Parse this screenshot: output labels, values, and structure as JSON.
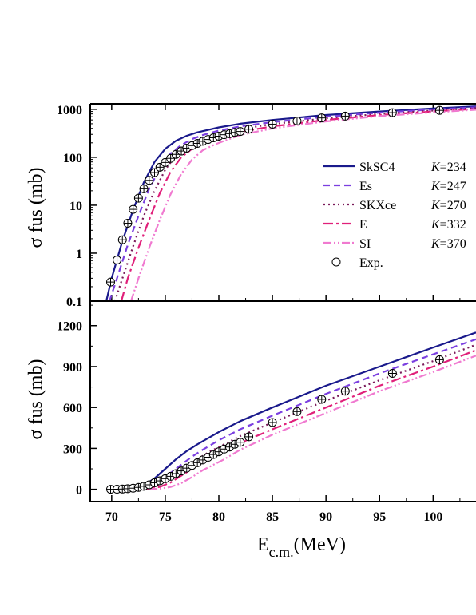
{
  "chart_data": [
    {
      "type": "line",
      "yscale": "log",
      "xlim": [
        68,
        104
      ],
      "ylim": [
        0.1,
        1300
      ],
      "ylabel": "σ fus (mb)",
      "yticks": [
        0.1,
        1,
        10,
        100,
        1000
      ],
      "ytick_labels": [
        "0.1",
        "1",
        "10",
        "100",
        "1000"
      ],
      "legend_position": "right",
      "series": [
        {
          "name": "SkSC4",
          "k_label": "K=234",
          "color": "#1a1a8c",
          "dash": "solid",
          "x": [
            69.5,
            70,
            71,
            72,
            73,
            74,
            75,
            76,
            77,
            78,
            80,
            82,
            85,
            90,
            95,
            100,
            104
          ],
          "y": [
            0.1,
            0.3,
            1.8,
            8,
            30,
            80,
            150,
            220,
            280,
            330,
            420,
            500,
            600,
            760,
            900,
            1040,
            1150
          ]
        },
        {
          "name": "Es",
          "k_label": "K=247",
          "color": "#7b3fe0",
          "dash": "8,5",
          "x": [
            69.8,
            70.5,
            71.5,
            72.5,
            73.5,
            74.5,
            75.5,
            76.5,
            77.5,
            78.5,
            80,
            82,
            85,
            90,
            95,
            100,
            104
          ],
          "y": [
            0.1,
            0.3,
            1.5,
            6,
            22,
            60,
            120,
            180,
            240,
            290,
            360,
            440,
            540,
            700,
            850,
            990,
            1100
          ]
        },
        {
          "name": "SKXce",
          "k_label": "K=270",
          "color": "#7a1a5a",
          "dash": "2,4",
          "x": [
            70.3,
            71,
            72,
            73,
            74,
            75,
            76,
            77,
            78,
            79,
            80,
            82,
            85,
            90,
            95,
            100,
            104
          ],
          "y": [
            0.1,
            0.3,
            1.4,
            6,
            20,
            55,
            110,
            170,
            220,
            270,
            310,
            390,
            490,
            650,
            800,
            940,
            1060
          ]
        },
        {
          "name": "E",
          "k_label": "K=332",
          "color": "#e0207a",
          "dash": "12,4,3,4",
          "x": [
            70.9,
            71.5,
            72.5,
            73.5,
            74.5,
            75.5,
            76.5,
            77.5,
            78.5,
            79.5,
            80.5,
            82,
            85,
            90,
            95,
            100,
            104
          ],
          "y": [
            0.1,
            0.3,
            1.3,
            5,
            18,
            50,
            100,
            150,
            200,
            240,
            280,
            340,
            440,
            600,
            760,
            900,
            1020
          ]
        },
        {
          "name": "SI",
          "k_label": "K=370",
          "color": "#f07ad0",
          "dash": "10,3,2,3,2,3",
          "x": [
            71.8,
            72.5,
            73.5,
            74.5,
            75.5,
            76.5,
            77.5,
            78.5,
            79.5,
            80.5,
            82,
            85,
            90,
            95,
            100,
            104
          ],
          "y": [
            0.1,
            0.3,
            1.3,
            5,
            17,
            45,
            90,
            140,
            180,
            220,
            290,
            400,
            560,
            720,
            860,
            980
          ]
        },
        {
          "name": "Exp.",
          "color": "#000000",
          "marker": "circle-cross",
          "x": [
            69.9,
            70.5,
            71.0,
            71.5,
            72.0,
            72.5,
            73.0,
            73.5,
            74.0,
            74.5,
            75.0,
            75.5,
            76.0,
            76.5,
            77.0,
            77.5,
            78.0,
            78.5,
            79.0,
            79.5,
            80.0,
            80.5,
            81.0,
            81.5,
            82.0,
            82.8,
            85.0,
            87.3,
            89.6,
            91.8,
            96.2,
            100.6
          ],
          "y": [
            0.25,
            0.72,
            1.9,
            4.2,
            8.2,
            14,
            22,
            33,
            48,
            62,
            78,
            95,
            115,
            135,
            155,
            175,
            195,
            215,
            235,
            255,
            275,
            295,
            310,
            330,
            345,
            385,
            490,
            570,
            660,
            720,
            850,
            950
          ]
        }
      ]
    },
    {
      "type": "line",
      "xlabel": "E",
      "xlabel_sub": "c.m.",
      "xlabel_unit": "(MeV)",
      "xlim": [
        68,
        104
      ],
      "ylim": [
        -90,
        1380
      ],
      "xticks": [
        70,
        75,
        80,
        85,
        90,
        95,
        100
      ],
      "yticks": [
        0,
        300,
        600,
        900,
        1200
      ],
      "ylabel": "σ fus (mb)",
      "series_ref": "same-as-top-panel"
    }
  ],
  "labels": {
    "top_ytick_labels": [
      "0.1",
      "1",
      "10",
      "100",
      "1000"
    ],
    "bottom_ytick_labels": [
      "0",
      "300",
      "600",
      "900",
      "1200"
    ],
    "xtick_labels": [
      "70",
      "75",
      "80",
      "85",
      "90",
      "95",
      "100"
    ],
    "ylabel": "σ fus (mb)",
    "xlabel_main": "E",
    "xlabel_sub": "c.m.",
    "xlabel_unit": "(MeV)"
  }
}
